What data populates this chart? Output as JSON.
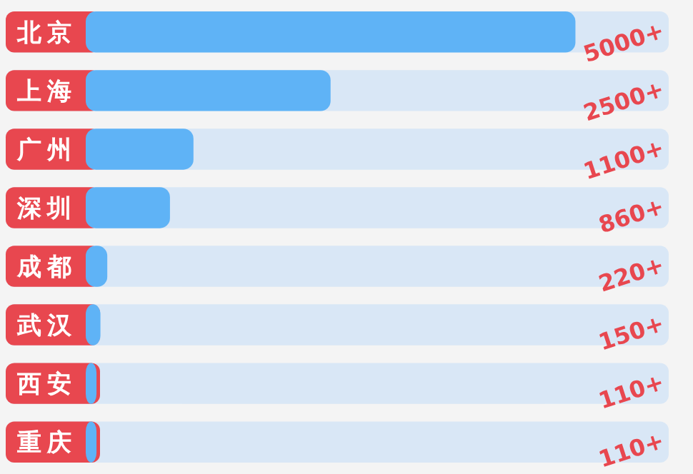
{
  "chart_data": {
    "type": "bar",
    "orientation": "horizontal",
    "categories": [
      "北京",
      "上海",
      "广州",
      "深圳",
      "成都",
      "武汉",
      "西安",
      "重庆"
    ],
    "values": [
      5000,
      2500,
      1100,
      860,
      220,
      150,
      110,
      110
    ],
    "value_labels": [
      "5000+",
      "2500+",
      "1100+",
      "860+",
      "220+",
      "150+",
      "110+",
      "110+"
    ],
    "color": "#5fb3f6"
  }
}
